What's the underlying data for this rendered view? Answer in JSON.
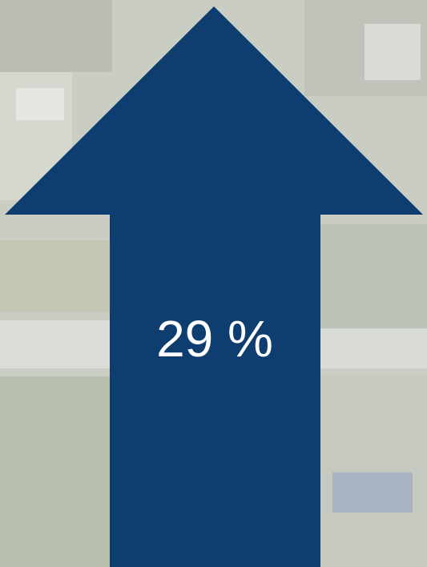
{
  "label": "29 %"
}
